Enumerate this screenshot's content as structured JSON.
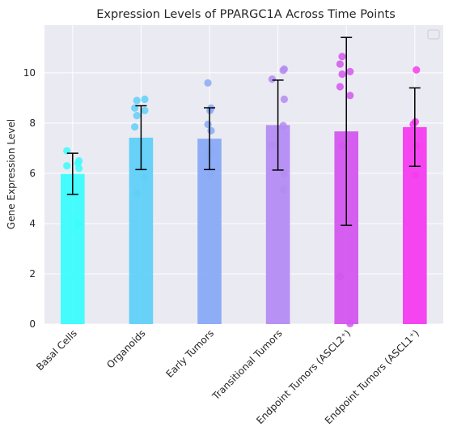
{
  "chart_data": {
    "type": "bar",
    "title": "Expression Levels of PPARGC1A Across Time Points",
    "xlabel": "",
    "ylabel": "Gene Expression Level",
    "ylim": [
      0,
      11.9
    ],
    "yticks": [
      0,
      2,
      4,
      6,
      8,
      10
    ],
    "grid": true,
    "legend": "top-right",
    "categories": [
      "Basal Cells",
      "Organoids",
      "Early Tumors",
      "Transitional Tumors",
      "Endpoint Tumors (ASCL2⁺)",
      "Endpoint Tumors (ASCL1⁺)"
    ],
    "values": [
      5.98,
      7.42,
      7.38,
      7.92,
      7.67,
      7.84
    ],
    "errors": [
      0.82,
      1.27,
      1.23,
      1.79,
      3.74,
      1.56
    ],
    "colors": [
      "#3cfcfc",
      "#60d0f8",
      "#8aaaf6",
      "#b48cf2",
      "#d456ef",
      "#f43cef"
    ],
    "points": [
      [
        6.9,
        6.5,
        6.4,
        6.3,
        6.2,
        4.0
      ],
      [
        8.95,
        8.9,
        8.6,
        8.5,
        8.3,
        7.85,
        5.85,
        5.2
      ],
      [
        9.6,
        8.6,
        8.5,
        7.95,
        7.7,
        6.9,
        6.7,
        6.05,
        5.9
      ],
      [
        10.15,
        10.1,
        9.75,
        8.95,
        7.9,
        7.1,
        6.0,
        5.35
      ],
      [
        10.65,
        10.35,
        10.05,
        9.95,
        9.45,
        9.1,
        7.1,
        1.9,
        0.02
      ],
      [
        10.12,
        8.05,
        7.95,
        7.1,
        5.92
      ]
    ]
  }
}
